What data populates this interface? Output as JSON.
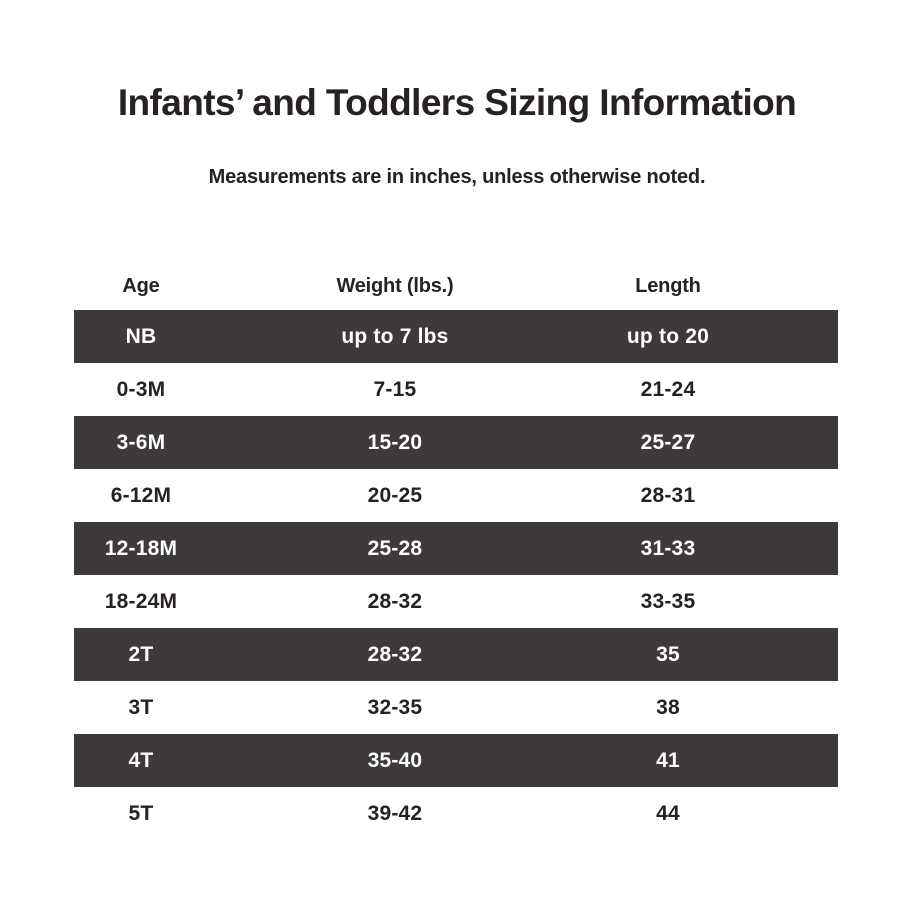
{
  "title": "Infants’ and Toddlers Sizing Information",
  "subtitle": "Measurements are in inches, unless otherwise noted.",
  "chart_data": {
    "type": "table",
    "columns": [
      "Age",
      "Weight (lbs.)",
      "Length"
    ],
    "rows": [
      {
        "age": "NB",
        "weight": "up to 7 lbs",
        "length": "up to 20",
        "dark": true
      },
      {
        "age": "0-3M",
        "weight": "7-15",
        "length": "21-24",
        "dark": false
      },
      {
        "age": "3-6M",
        "weight": "15-20",
        "length": "25-27",
        "dark": true
      },
      {
        "age": "6-12M",
        "weight": "20-25",
        "length": "28-31",
        "dark": false
      },
      {
        "age": "12-18M",
        "weight": "25-28",
        "length": "31-33",
        "dark": true
      },
      {
        "age": "18-24M",
        "weight": "28-32",
        "length": "33-35",
        "dark": false
      },
      {
        "age": "2T",
        "weight": "28-32",
        "length": "35",
        "dark": true
      },
      {
        "age": "3T",
        "weight": "32-35",
        "length": "38",
        "dark": false
      },
      {
        "age": "4T",
        "weight": "35-40",
        "length": "41",
        "dark": true
      },
      {
        "age": "5T",
        "weight": "39-42",
        "length": "44",
        "dark": false
      }
    ]
  },
  "colors": {
    "row_dark_background": "#3e3a3a",
    "row_light_background": "#ffffff",
    "text_dark": "#262223",
    "text_light": "#ffffff",
    "page_background": "#ffffff"
  }
}
